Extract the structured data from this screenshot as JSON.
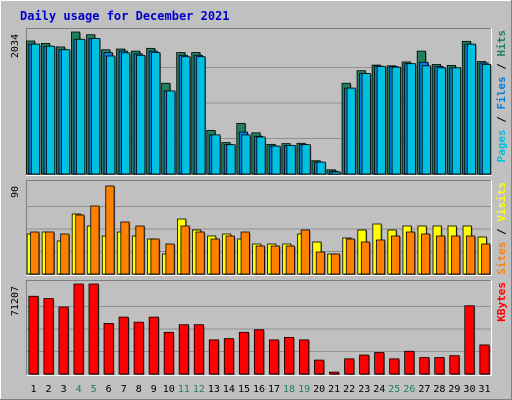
{
  "chart_data": {
    "type": "bar",
    "title": "Daily usage for December 2021",
    "colors": {
      "background": "#c0c0c0",
      "title": "#0000cc",
      "pages": "#00c0e0",
      "files": "#0080e0",
      "hits": "#208060",
      "sites": "#ff8000",
      "visits": "#ffff00",
      "kbytes": "#ff0000",
      "weekend_label": "#208060",
      "day_label": "#000000"
    },
    "categories": [
      "1",
      "2",
      "3",
      "4",
      "5",
      "6",
      "7",
      "8",
      "9",
      "10",
      "11",
      "12",
      "13",
      "14",
      "15",
      "16",
      "17",
      "18",
      "19",
      "20",
      "21",
      "22",
      "23",
      "24",
      "25",
      "26",
      "27",
      "28",
      "29",
      "30",
      "31"
    ],
    "weekend_days": [
      "4",
      "5",
      "11",
      "12",
      "18",
      "19",
      "25",
      "26"
    ],
    "panels": [
      {
        "id": "hits-files-pages",
        "ymax": 2034,
        "ymax_label": "2034",
        "side_label": [
          {
            "text": "Pages",
            "color": "#00c0e0"
          },
          {
            "text": " / ",
            "color": "#000000"
          },
          {
            "text": "Files",
            "color": "#0080e0"
          },
          {
            "text": " / ",
            "color": "#000000"
          },
          {
            "text": "Hits",
            "color": "#208060"
          }
        ],
        "series": [
          {
            "name": "Hits",
            "color": "#208060",
            "values": [
              1905,
              1870,
              1820,
              2034,
              1995,
              1780,
              1790,
              1760,
              1800,
              1300,
              1740,
              1740,
              625,
              450,
              725,
              590,
              425,
              435,
              440,
              190,
              60,
              1300,
              1480,
              1560,
              1550,
              1605,
              1760,
              1570,
              1555,
              1900,
              1610
            ]
          },
          {
            "name": "Files",
            "color": "#0080e0",
            "values": [
              1860,
              1830,
              1780,
              1930,
              1940,
              1740,
              1760,
              1720,
              1760,
              1190,
              1700,
              1700,
              560,
              420,
              600,
              540,
              400,
              410,
              420,
              170,
              40,
              1230,
              1440,
              1545,
              1540,
              1580,
              1600,
              1540,
              1520,
              1860,
              1590
            ]
          },
          {
            "name": "Pages",
            "color": "#00c0e0",
            "values": [
              1860,
              1830,
              1780,
              1930,
              1940,
              1690,
              1735,
              1700,
              1740,
              1190,
              1680,
              1680,
              560,
              420,
              560,
              530,
              400,
              410,
              420,
              170,
              30,
              1230,
              1440,
              1540,
              1530,
              1580,
              1550,
              1520,
              1520,
              1860,
              1570
            ]
          }
        ]
      },
      {
        "id": "visits-sites",
        "ymax": 90,
        "ymax_label": "90",
        "side_label": [
          {
            "text": "Sites",
            "color": "#ff8000"
          },
          {
            "text": " / ",
            "color": "#000000"
          },
          {
            "text": "Visits",
            "color": "#ffff00"
          }
        ],
        "series": [
          {
            "name": "Visits",
            "color": "#ffff00",
            "values": [
              40,
              42,
              33,
              60,
              48,
              38,
              42,
              38,
              35,
              20,
              55,
              44,
              38,
              40,
              35,
              30,
              30,
              30,
              40,
              32,
              20,
              36,
              44,
              50,
              44,
              48,
              48,
              48,
              48,
              48,
              37
            ]
          },
          {
            "name": "Sites",
            "color": "#ff8000",
            "values": [
              42,
              42,
              40,
              59,
              68,
              88,
              52,
              48,
              35,
              30,
              48,
              42,
              35,
              38,
              42,
              28,
              28,
              28,
              44,
              22,
              20,
              35,
              32,
              34,
              38,
              42,
              40,
              38,
              38,
              38,
              30
            ]
          }
        ]
      },
      {
        "id": "kbytes",
        "ymax": 71207,
        "ymax_label": "71207",
        "side_label": [
          {
            "text": "KBytes",
            "color": "#ff0000"
          }
        ],
        "series": [
          {
            "name": "KBytes",
            "color": "#ff0000",
            "values": [
              61500,
              59700,
              53000,
              71207,
              71207,
              40000,
              45000,
              41000,
              45000,
              33000,
              39000,
              39000,
              27000,
              28000,
              33000,
              35000,
              27000,
              29000,
              27000,
              11000,
              1500,
              12000,
              15000,
              17000,
              12000,
              18000,
              13000,
              13000,
              14500,
              54000,
              23000
            ]
          }
        ]
      }
    ]
  }
}
